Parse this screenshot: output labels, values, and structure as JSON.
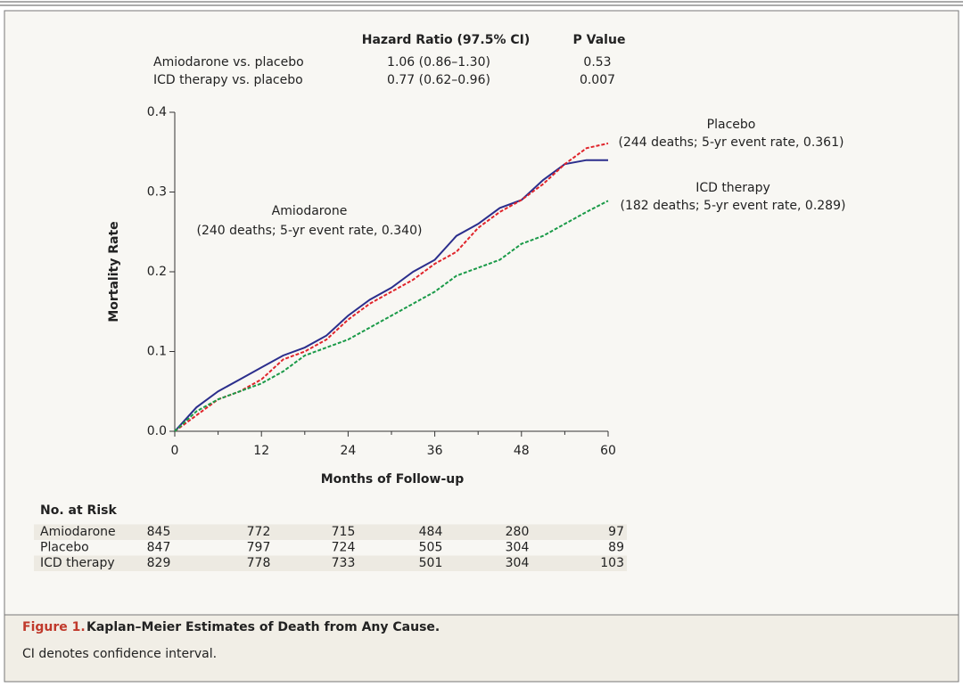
{
  "chart_data": {
    "type": "line",
    "figure_label": "Figure 1.",
    "title": "Kaplan–Meier Estimates of Death from Any Cause.",
    "caption": "CI denotes confidence interval.",
    "xlabel": "Months of Follow-up",
    "ylabel": "Mortality Rate",
    "x": [
      0,
      3,
      6,
      9,
      12,
      15,
      18,
      21,
      24,
      27,
      30,
      33,
      36,
      39,
      42,
      45,
      48,
      51,
      54,
      57,
      60
    ],
    "series": [
      {
        "name": "Amiodarone",
        "color": "#2b2e8c",
        "dashed": false,
        "annotation": "(240 deaths; 5-yr event rate, 0.340)",
        "values": [
          0,
          0.03,
          0.05,
          0.065,
          0.08,
          0.095,
          0.105,
          0.12,
          0.145,
          0.165,
          0.18,
          0.2,
          0.215,
          0.245,
          0.26,
          0.28,
          0.29,
          0.315,
          0.335,
          0.34,
          0.34
        ]
      },
      {
        "name": "Placebo",
        "color": "#e0242b",
        "dashed": true,
        "annotation": "(244 deaths; 5-yr event rate, 0.361)",
        "values": [
          0,
          0.02,
          0.04,
          0.05,
          0.065,
          0.09,
          0.1,
          0.115,
          0.14,
          0.16,
          0.175,
          0.19,
          0.21,
          0.225,
          0.255,
          0.275,
          0.29,
          0.31,
          0.335,
          0.355,
          0.361
        ]
      },
      {
        "name": "ICD therapy",
        "color": "#1a9a48",
        "dashed": true,
        "annotation": "(182 deaths; 5-yr event rate, 0.289)",
        "values": [
          0,
          0.025,
          0.04,
          0.05,
          0.06,
          0.075,
          0.095,
          0.105,
          0.115,
          0.13,
          0.145,
          0.16,
          0.175,
          0.195,
          0.205,
          0.215,
          0.235,
          0.245,
          0.26,
          0.275,
          0.289
        ]
      }
    ],
    "xlim": [
      0,
      60
    ],
    "xticks": [
      0,
      12,
      24,
      36,
      48,
      60
    ],
    "xminorticks": [
      6,
      18,
      30,
      42,
      54
    ],
    "ylim": [
      0,
      0.4
    ],
    "yticks": [
      {
        "value": 0,
        "label": "0.0"
      },
      0.1,
      0.2,
      0.3,
      0.4
    ],
    "hazard_table": {
      "columns": [
        "Hazard Ratio (97.5% CI)",
        "P Value"
      ],
      "rows": [
        [
          "Amiodarone vs. placebo",
          "1.06 (0.86–1.30)",
          "0.53"
        ],
        [
          "ICD therapy vs. placebo",
          "0.77 (0.62–0.96)",
          "0.007"
        ]
      ]
    },
    "at_risk": {
      "title": "No. at Risk",
      "rows": [
        {
          "name": "Amiodarone",
          "counts": [
            845,
            772,
            715,
            484,
            280,
            97
          ]
        },
        {
          "name": "Placebo",
          "counts": [
            847,
            797,
            724,
            505,
            304,
            89
          ]
        },
        {
          "name": "ICD therapy",
          "counts": [
            829,
            778,
            733,
            501,
            304,
            103
          ]
        }
      ]
    }
  }
}
